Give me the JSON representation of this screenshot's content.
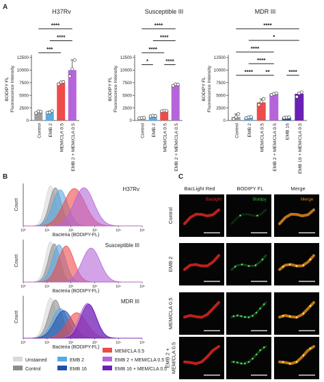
{
  "panels": {
    "a": "A",
    "b": "B",
    "c": "C"
  },
  "sig": [
    "*",
    "**",
    "***",
    "****"
  ],
  "bar_axis": {
    "ylabel_line1": "BODIPY FL",
    "ylabel_line2": "Fluorescence Intensity",
    "ticks": [
      "0",
      "2500",
      "5000",
      "7500",
      "10000",
      "12500"
    ]
  },
  "hist_axis": {
    "ylabel": "Count",
    "xlabel": "Bacteria (BODIPY-FL)",
    "ticks": [
      "10⁰",
      "10¹",
      "10²",
      "10³",
      "10⁴",
      "10⁵"
    ],
    "xticks_pos": [
      0,
      1,
      2,
      3,
      4,
      5
    ]
  },
  "legend": [
    {
      "label": "Unstained",
      "color": "#d9d9d9"
    },
    {
      "label": "Control",
      "color": "#8c8c8c"
    },
    {
      "label": "EMB 2",
      "color": "#5aa9e6"
    },
    {
      "label": "EMB 16",
      "color": "#1f4fa8"
    },
    {
      "label": "MEM/CLA 0.5",
      "color": "#ee4b4b"
    },
    {
      "label": "EMB 2 + MEM/CLA 0.5",
      "color": "#b565d9"
    },
    {
      "label": "EMB 16 + MEM/CLA 0.5",
      "color": "#6a1fb5"
    }
  ],
  "microscopy": {
    "col_headers": [
      "BacLight Red",
      "BODIPY FL",
      "Merge"
    ],
    "tile_labels": [
      "Baclight",
      "Bodipy",
      "Merge"
    ],
    "row_labels": [
      [
        "Control"
      ],
      [
        "EMB 2"
      ],
      [
        "MEM/CLA 0.5"
      ],
      [
        "EMB 2 +",
        "MEM/CLA 0.5"
      ]
    ]
  },
  "chart_data": [
    {
      "type": "bar",
      "title": "H37Rv",
      "ylim": [
        0,
        12500
      ],
      "ylabel": "BODIPY FL Fluorescence Intensity",
      "categories": [
        "Control",
        "EMB 2",
        "MEM/CLA 0.5",
        "EMB 2 + MEM/CLA 0.5"
      ],
      "values": [
        1700,
        1700,
        7500,
        10000
      ],
      "colors": [
        "#9e9e9e",
        "#5aa9e6",
        "#ee4b4b",
        "#b565d9"
      ],
      "points": [
        [
          1500,
          1800,
          1750
        ],
        [
          1550,
          1600,
          1900
        ],
        [
          7200,
          7600,
          7700
        ],
        [
          8800,
          10200,
          12000
        ]
      ],
      "brackets": [
        {
          "a": 0,
          "b": 3,
          "label": "****"
        },
        {
          "a": 1,
          "b": 3,
          "label": "****"
        },
        {
          "a": 0,
          "b": 2,
          "label": "***"
        }
      ]
    },
    {
      "type": "bar",
      "title": "Susceptible III",
      "ylim": [
        0,
        12500
      ],
      "ylabel": "BODIPY FL Fluorescence Intensity",
      "categories": [
        "Control",
        "EMB 2",
        "MEM/CLA 0.5",
        "EMB 2 + MEM/CLA 0.5"
      ],
      "values": [
        500,
        900,
        1900,
        7100
      ],
      "colors": [
        "#9e9e9e",
        "#5aa9e6",
        "#ee4b4b",
        "#b565d9"
      ],
      "points": [
        [
          450,
          500,
          550
        ],
        [
          850,
          950,
          900
        ],
        [
          1850,
          1950,
          1900
        ],
        [
          6900,
          7200,
          7150
        ]
      ],
      "brackets": [
        {
          "a": 0,
          "b": 3,
          "label": "****"
        },
        {
          "a": 1,
          "b": 3,
          "label": "****"
        },
        {
          "a": 0,
          "b": 2,
          "label": "****"
        },
        {
          "a": 0,
          "b": 1,
          "label": "*"
        },
        {
          "a": 2,
          "b": 3,
          "label": "****"
        }
      ]
    },
    {
      "type": "bar",
      "title": "MDR III",
      "ylim": [
        0,
        12500
      ],
      "ylabel": "BODIPY FL Fluorescence Intensity",
      "categories": [
        "Control",
        "EMB 2",
        "MEM/CLA 0.5",
        "EMB 2 + MEM/CLA 0.5",
        "EMB 16",
        "EMB 16 + MEM/CLA 0.5"
      ],
      "values": [
        700,
        600,
        3600,
        5300,
        600,
        5300
      ],
      "colors": [
        "#9e9e9e",
        "#5aa9e6",
        "#ee4b4b",
        "#b565d9",
        "#1f4fa8",
        "#6a1fb5"
      ],
      "points": [
        [
          300,
          700,
          1300
        ],
        [
          500,
          650,
          700
        ],
        [
          3100,
          3700,
          4300
        ],
        [
          5100,
          5300,
          5400
        ],
        [
          550,
          600,
          650
        ],
        [
          4700,
          5400,
          5600
        ]
      ],
      "brackets": [
        {
          "a": 0,
          "b": 5,
          "label": "****"
        },
        {
          "a": 1,
          "b": 5,
          "label": "*"
        },
        {
          "a": 0,
          "b": 3,
          "label": "****"
        },
        {
          "a": 1,
          "b": 3,
          "label": "****"
        },
        {
          "a": 0,
          "b": 2,
          "label": "****"
        },
        {
          "a": 2,
          "b": 3,
          "label": "**"
        },
        {
          "a": 4,
          "b": 5,
          "label": "****"
        }
      ]
    },
    {
      "type": "area",
      "title": "H37Rv",
      "xscale": "log",
      "xlim": [
        0,
        5
      ],
      "series": [
        {
          "name": "Unstained",
          "color": "#d9d9d9",
          "mu": 1.15,
          "sigma": 0.22,
          "h": 0.95
        },
        {
          "name": "Control",
          "color": "#8c8c8c",
          "mu": 1.35,
          "sigma": 0.25,
          "h": 0.9
        },
        {
          "name": "EMB 2",
          "color": "#5aa9e6",
          "mu": 1.55,
          "sigma": 0.32,
          "h": 0.85
        },
        {
          "name": "MEM/CLA 0.5",
          "color": "#ee4b4b",
          "mu": 2.15,
          "sigma": 0.45,
          "h": 0.88
        },
        {
          "name": "EMB 2 + MEM/CLA 0.5",
          "color": "#b565d9",
          "mu": 2.55,
          "sigma": 0.42,
          "h": 0.9
        }
      ]
    },
    {
      "type": "area",
      "title": "Susceptible III",
      "xscale": "log",
      "xlim": [
        0,
        5
      ],
      "series": [
        {
          "name": "Unstained",
          "color": "#d9d9d9",
          "mu": 1.15,
          "sigma": 0.22,
          "h": 0.95
        },
        {
          "name": "Control",
          "color": "#8c8c8c",
          "mu": 1.3,
          "sigma": 0.24,
          "h": 0.9
        },
        {
          "name": "EMB 2",
          "color": "#5aa9e6",
          "mu": 1.5,
          "sigma": 0.28,
          "h": 0.88
        },
        {
          "name": "MEM/CLA 0.5",
          "color": "#ee4b4b",
          "mu": 1.8,
          "sigma": 0.33,
          "h": 0.85
        },
        {
          "name": "EMB 2 + MEM/CLA 0.5",
          "color": "#b565d9",
          "mu": 2.85,
          "sigma": 0.38,
          "h": 0.8
        }
      ]
    },
    {
      "type": "area",
      "title": "MDR III",
      "xscale": "log",
      "xlim": [
        0,
        5
      ],
      "series": [
        {
          "name": "Unstained",
          "color": "#d9d9d9",
          "mu": 1.15,
          "sigma": 0.24,
          "h": 0.95
        },
        {
          "name": "Control",
          "color": "#8c8c8c",
          "mu": 1.35,
          "sigma": 0.28,
          "h": 0.9
        },
        {
          "name": "EMB 2",
          "color": "#5aa9e6",
          "mu": 1.55,
          "sigma": 0.34,
          "h": 0.7
        },
        {
          "name": "EMB 16",
          "color": "#1f4fa8",
          "mu": 1.7,
          "sigma": 0.38,
          "h": 0.65
        },
        {
          "name": "MEM/CLA 0.5",
          "color": "#ee4b4b",
          "mu": 2.25,
          "sigma": 0.42,
          "h": 0.6
        },
        {
          "name": "EMB 2 + MEM/CLA 0.5",
          "color": "#b565d9",
          "mu": 2.7,
          "sigma": 0.35,
          "h": 0.82
        },
        {
          "name": "EMB 16 + MEM/CLA 0.5",
          "color": "#6a1fb5",
          "mu": 2.75,
          "sigma": 0.33,
          "h": 0.8
        }
      ]
    }
  ]
}
